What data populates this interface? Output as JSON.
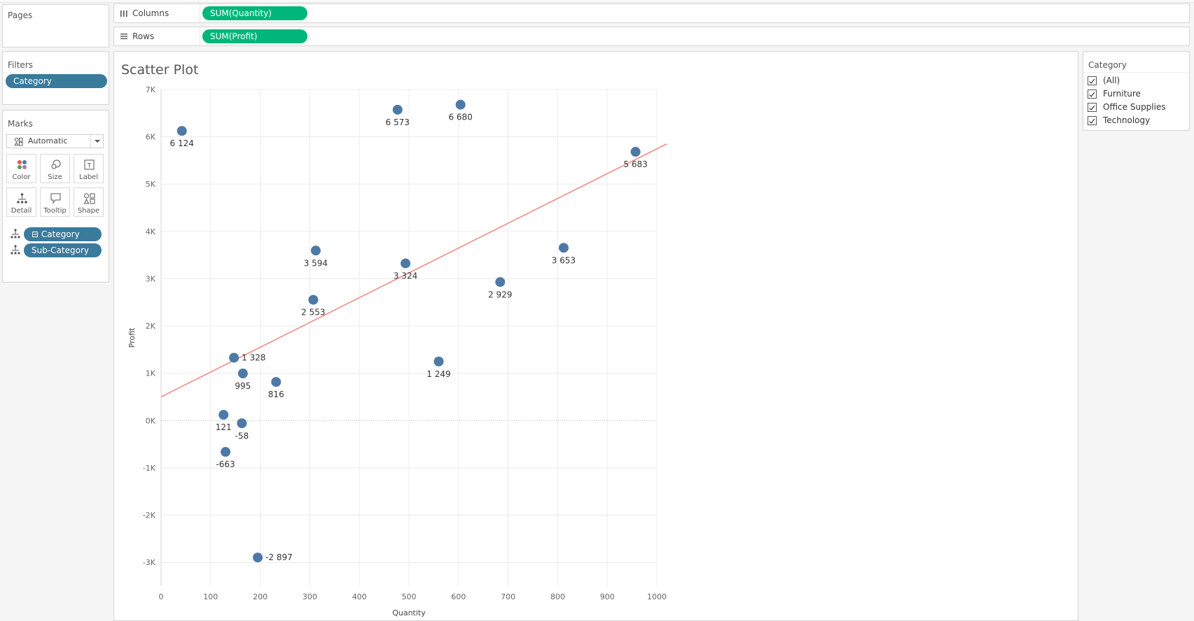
{
  "pages": {
    "title": "Pages"
  },
  "shelves": {
    "columns_label": "Columns",
    "columns_pill": "SUM(Quantity)",
    "rows_label": "Rows",
    "rows_pill": "SUM(Profit)"
  },
  "filters": {
    "title": "Filters",
    "pill": "Category"
  },
  "marks": {
    "title": "Marks",
    "type": "Automatic",
    "buttons": [
      "Color",
      "Size",
      "Label",
      "Detail",
      "Tooltip",
      "Shape"
    ],
    "detail_pills": [
      "Category",
      "Sub-Category"
    ],
    "category_pill_prefix": "⊟"
  },
  "legend": {
    "title": "Category",
    "items": [
      "(All)",
      "Furniture",
      "Office Supplies",
      "Technology"
    ],
    "checked": [
      true,
      true,
      true,
      true
    ]
  },
  "colors": {
    "mark": "#4e79a7",
    "trend": "#f08c84",
    "pill_blue": "#3a7a9b",
    "pill_green": "#00b67a"
  },
  "chart_data": {
    "type": "scatter",
    "title": "Scatter Plot",
    "xlabel": "Quantity",
    "ylabel": "Profit",
    "xlim": [
      0,
      1000
    ],
    "ylim": [
      -3500,
      7000
    ],
    "x_ticks": [
      0,
      100,
      200,
      300,
      400,
      500,
      600,
      700,
      800,
      900,
      1000
    ],
    "x_tick_labels": [
      "0",
      "100",
      "200",
      "300",
      "400",
      "500",
      "600",
      "700",
      "800",
      "900",
      "1000"
    ],
    "y_ticks": [
      7000,
      6000,
      5000,
      4000,
      3000,
      2000,
      1000,
      0,
      -1000,
      -2000,
      -3000
    ],
    "y_tick_labels": [
      "7K",
      "6K",
      "5K",
      "4K",
      "3K",
      "2K",
      "1K",
      "0K",
      "-1K",
      "-2K",
      "-3K"
    ],
    "grid": true,
    "points": [
      {
        "x": 42,
        "y": 6124,
        "label": "6 124"
      },
      {
        "x": 477,
        "y": 6573,
        "label": "6 573"
      },
      {
        "x": 604,
        "y": 6680,
        "label": "6 680"
      },
      {
        "x": 957,
        "y": 5683,
        "label": "5 683"
      },
      {
        "x": 312,
        "y": 3594,
        "label": "3 594"
      },
      {
        "x": 493,
        "y": 3324,
        "label": "3 324"
      },
      {
        "x": 812,
        "y": 3653,
        "label": "3 653"
      },
      {
        "x": 684,
        "y": 2929,
        "label": "2 929"
      },
      {
        "x": 307,
        "y": 2553,
        "label": "2 553"
      },
      {
        "x": 147,
        "y": 1328,
        "label": "1 328"
      },
      {
        "x": 165,
        "y": 995,
        "label": "995"
      },
      {
        "x": 232,
        "y": 816,
        "label": "816"
      },
      {
        "x": 560,
        "y": 1249,
        "label": "1 249"
      },
      {
        "x": 126,
        "y": 121,
        "label": "121"
      },
      {
        "x": 163,
        "y": -58,
        "label": "-58"
      },
      {
        "x": 130,
        "y": -663,
        "label": "-663"
      },
      {
        "x": 195,
        "y": -2897,
        "label": "-2 897"
      }
    ],
    "trend_line": {
      "x": [
        0,
        1020
      ],
      "y": [
        500,
        5850
      ]
    }
  }
}
